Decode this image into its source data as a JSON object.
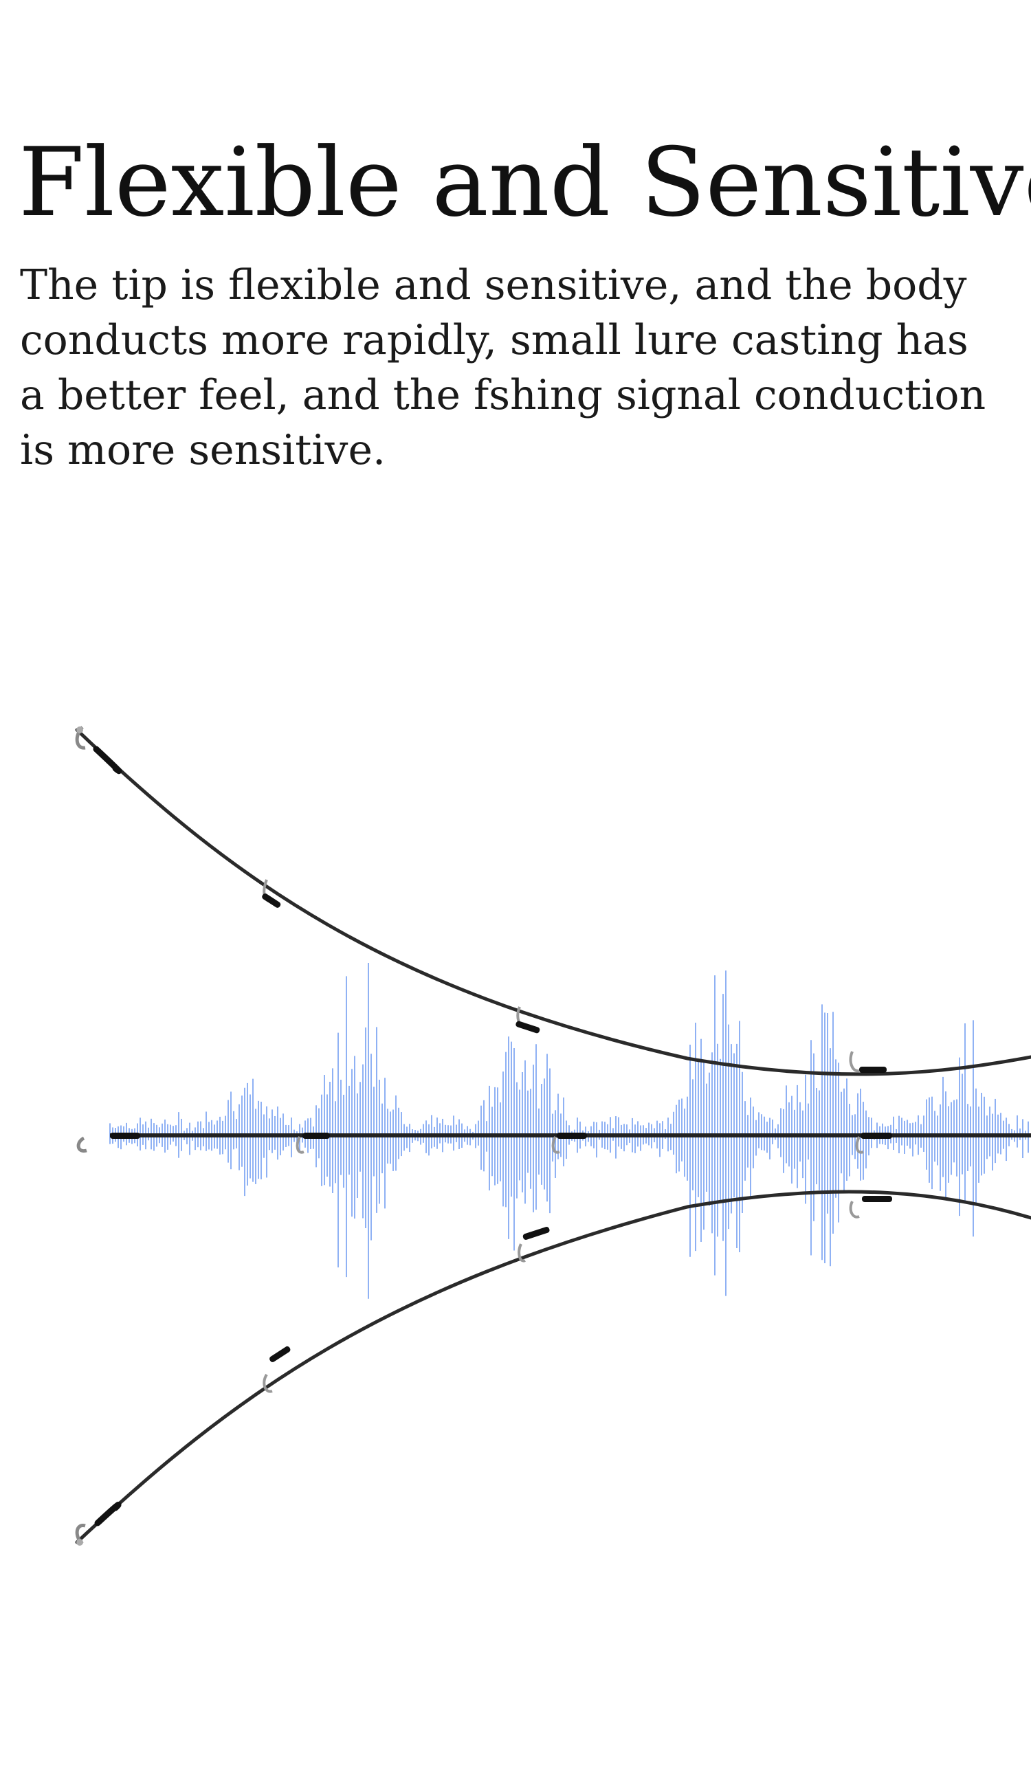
{
  "headline": "Flexible and Sensitive",
  "description": "The tip is flexible and sensitive, and the body\nconducts more rapidly, small lure casting has\na better feel, and the fshing signal conduction\nis more sensitive.",
  "illustration": {
    "rods": [
      "upper-bent-rod",
      "straight-rod",
      "lower-bent-rod"
    ],
    "waveform_color": "#5b8def",
    "rod_color": "#2a2a2a"
  }
}
